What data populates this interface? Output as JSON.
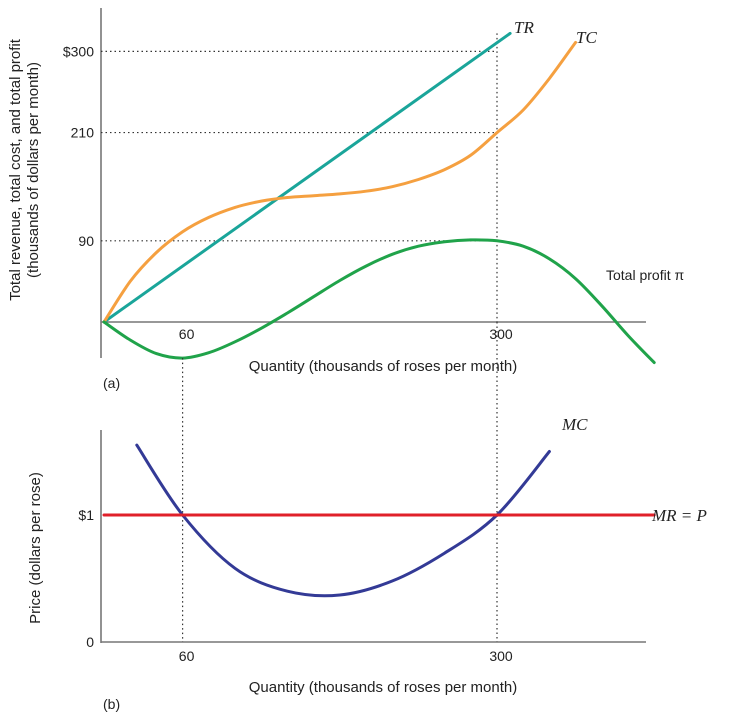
{
  "chart_data": [
    {
      "panel_label": "(a)",
      "type": "line",
      "xlabel": "Quantity (thousands of roses per month)",
      "ylabel_line1": "Total revenue, total cost, and total profit",
      "ylabel_line2": "(thousands of dollars per month)",
      "x_ticks": [
        {
          "value": 60,
          "label": "60"
        },
        {
          "value": 300,
          "label": "300"
        }
      ],
      "y_ticks": [
        {
          "value": 90,
          "label": "90"
        },
        {
          "value": 210,
          "label": "210"
        },
        {
          "value": 300,
          "label": "$300"
        }
      ],
      "xlim": [
        -4,
        420
      ],
      "ylim": [
        -40,
        360
      ],
      "grid": false,
      "series": [
        {
          "name": "TR",
          "color": "#1aa59a",
          "x": [
            0,
            310
          ],
          "y": [
            0,
            320
          ]
        },
        {
          "name": "TC",
          "color": "#f5a040",
          "x": [
            0,
            20,
            40,
            60,
            80,
            100,
            120,
            140,
            160,
            180,
            200,
            220,
            240,
            260,
            280,
            300,
            320,
            340,
            360
          ],
          "y": [
            0,
            45,
            77,
            100,
            116,
            127,
            134,
            138,
            140,
            142,
            145,
            150,
            158,
            169,
            185,
            210,
            235,
            270,
            310
          ]
        },
        {
          "name": "Total profit π",
          "color": "#20a34a",
          "x": [
            0,
            20,
            40,
            60,
            80,
            100,
            120,
            140,
            160,
            180,
            200,
            220,
            240,
            260,
            280,
            300,
            320,
            340,
            360,
            380,
            400,
            420
          ],
          "y": [
            0,
            -20,
            -35,
            -40,
            -34,
            -22,
            -7,
            10,
            28,
            46,
            62,
            75,
            84,
            89,
            91,
            90,
            84,
            70,
            48,
            18,
            -15,
            -45
          ]
        }
      ]
    },
    {
      "panel_label": "(b)",
      "type": "line",
      "xlabel": "Quantity (thousands of roses per month)",
      "ylabel": "Price (dollars per rose)",
      "x_ticks": [
        {
          "value": 60,
          "label": "60"
        },
        {
          "value": 300,
          "label": "300"
        }
      ],
      "y_ticks": [
        {
          "value": 0,
          "label": "0"
        },
        {
          "value": 1,
          "label": "$1"
        }
      ],
      "xlim": [
        -4,
        420
      ],
      "ylim": [
        0,
        1.65
      ],
      "grid": false,
      "series": [
        {
          "name": "MC",
          "color": "#333a96",
          "x": [
            25,
            60,
            100,
            140,
            180,
            220,
            260,
            300,
            340
          ],
          "y": [
            1.55,
            1.0,
            0.58,
            0.4,
            0.37,
            0.48,
            0.7,
            1.0,
            1.5
          ]
        },
        {
          "name": "MR = P",
          "color": "#e0202a",
          "x": [
            0,
            420
          ],
          "y": [
            1,
            1
          ]
        }
      ]
    }
  ]
}
